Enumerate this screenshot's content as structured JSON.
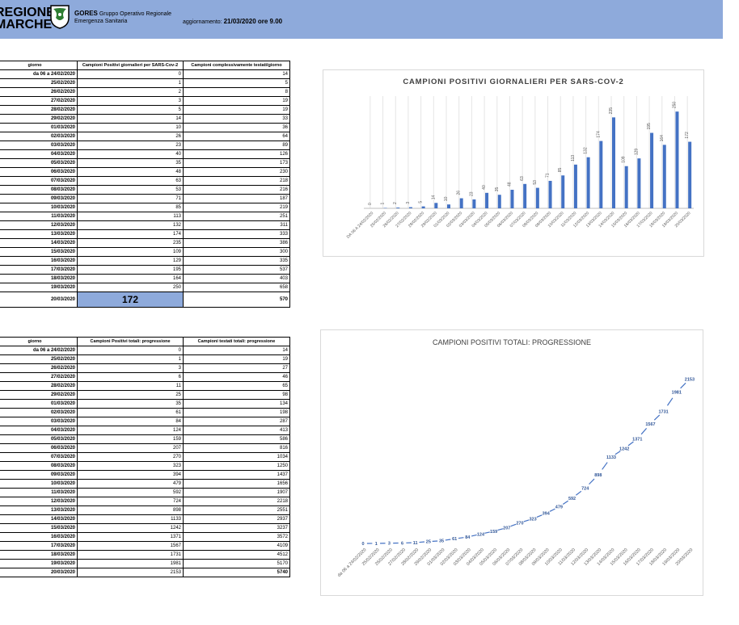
{
  "header": {
    "logo_line1": "REGIONE",
    "logo_line2": "MARCHE",
    "org_name": "GORES",
    "org_desc1": "Gruppo Operativo Regionale",
    "org_desc2": "Emergenza Sanitaria",
    "update_label": "aggiornamento:",
    "update_value": "21/03/2020 ore 9.00"
  },
  "table1": {
    "headers": [
      "giorno",
      "Campioni Positivi giornalieri per SARS-Cov-2",
      "Campioni complessivamente testati/giorno"
    ],
    "rows": [
      [
        "da 06 a 24/02/2020",
        "0",
        "14"
      ],
      [
        "25/02/2020",
        "1",
        "5"
      ],
      [
        "26/02/2020",
        "2",
        "8"
      ],
      [
        "27/02/2020",
        "3",
        "19"
      ],
      [
        "28/02/2020",
        "5",
        "19"
      ],
      [
        "29/02/2020",
        "14",
        "33"
      ],
      [
        "01/03/2020",
        "10",
        "36"
      ],
      [
        "02/03/2020",
        "26",
        "64"
      ],
      [
        "03/03/2020",
        "23",
        "89"
      ],
      [
        "04/03/2020",
        "40",
        "126"
      ],
      [
        "05/03/2020",
        "35",
        "173"
      ],
      [
        "06/03/2020",
        "48",
        "230"
      ],
      [
        "07/03/2020",
        "63",
        "218"
      ],
      [
        "08/03/2020",
        "53",
        "216"
      ],
      [
        "09/03/2020",
        "71",
        "187"
      ],
      [
        "10/03/2020",
        "85",
        "219"
      ],
      [
        "11/03/2020",
        "113",
        "251"
      ],
      [
        "12/03/2020",
        "132",
        "311"
      ],
      [
        "13/03/2020",
        "174",
        "333"
      ],
      [
        "14/03/2020",
        "235",
        "386"
      ],
      [
        "15/03/2020",
        "109",
        "300"
      ],
      [
        "16/03/2020",
        "129",
        "335"
      ],
      [
        "17/03/2020",
        "195",
        "537"
      ],
      [
        "18/03/2020",
        "164",
        "403"
      ],
      [
        "19/03/2020",
        "250",
        "658"
      ]
    ],
    "last_row": [
      "20/03/2020",
      "172",
      "570"
    ]
  },
  "table2": {
    "headers": [
      "giorno",
      "Campioni Positivi totali: progressione",
      "Campioni testati totali: progressione"
    ],
    "rows": [
      [
        "da 06 a 24/02/2020",
        "0",
        "14"
      ],
      [
        "25/02/2020",
        "1",
        "19"
      ],
      [
        "26/02/2020",
        "3",
        "27"
      ],
      [
        "27/02/2020",
        "6",
        "46"
      ],
      [
        "28/02/2020",
        "11",
        "65"
      ],
      [
        "29/02/2020",
        "25",
        "98"
      ],
      [
        "01/03/2020",
        "35",
        "134"
      ],
      [
        "02/03/2020",
        "61",
        "198"
      ],
      [
        "03/03/2020",
        "84",
        "287"
      ],
      [
        "04/03/2020",
        "124",
        "413"
      ],
      [
        "05/03/2020",
        "159",
        "586"
      ],
      [
        "06/03/2020",
        "207",
        "816"
      ],
      [
        "07/03/2020",
        "270",
        "1034"
      ],
      [
        "08/03/2020",
        "323",
        "1250"
      ],
      [
        "09/03/2020",
        "394",
        "1437"
      ],
      [
        "10/03/2020",
        "479",
        "1656"
      ],
      [
        "11/03/2020",
        "592",
        "1907"
      ],
      [
        "12/03/2020",
        "724",
        "2218"
      ],
      [
        "13/03/2020",
        "898",
        "2551"
      ],
      [
        "14/03/2020",
        "1133",
        "2937"
      ],
      [
        "15/03/2020",
        "1242",
        "3237"
      ],
      [
        "16/03/2020",
        "1371",
        "3572"
      ],
      [
        "17/03/2020",
        "1567",
        "4109"
      ],
      [
        "18/03/2020",
        "1731",
        "4512"
      ],
      [
        "19/03/2020",
        "1981",
        "5170"
      ]
    ],
    "last_row": [
      "20/03/2020",
      "2153",
      "5740"
    ]
  },
  "colors": {
    "header_bg": "#8eaadb",
    "series": "#4472c4"
  },
  "chart_data": [
    {
      "type": "bar",
      "title": "CAMPIONI POSITIVI GIORNALIERI PER SARS-COV-2",
      "categories": [
        "DA 06 A 24/02/2020",
        "25/02/2020",
        "26/02/2020",
        "27/02/2020",
        "28/02/2020",
        "29/02/2020",
        "01/03/2020",
        "02/03/2020",
        "03/03/2020",
        "04/03/2020",
        "05/03/2020",
        "06/03/2020",
        "07/03/2020",
        "08/03/2020",
        "09/03/2020",
        "10/03/2020",
        "11/03/2020",
        "12/03/2020",
        "13/03/2020",
        "14/03/2020",
        "15/03/2020",
        "16/03/2020",
        "17/03/2020",
        "18/03/2020",
        "19/03/2020",
        "20/03/2020"
      ],
      "values": [
        0,
        1,
        2,
        3,
        5,
        14,
        10,
        26,
        23,
        40,
        35,
        48,
        63,
        53,
        71,
        85,
        113,
        132,
        174,
        235,
        109,
        129,
        195,
        164,
        250,
        172
      ],
      "data_labels": true,
      "grid": "vertical"
    },
    {
      "type": "line",
      "title": "CAMPIONI POSITIVI TOTALI: PROGRESSIONE",
      "categories": [
        "da 06 a 24/02/2020",
        "25/02/2020",
        "26/02/2020",
        "27/02/2020",
        "28/02/2020",
        "29/02/2020",
        "01/03/2020",
        "02/03/2020",
        "03/03/2020",
        "04/03/2020",
        "05/03/2020",
        "06/03/2020",
        "07/03/2020",
        "08/03/2020",
        "09/03/2020",
        "10/03/2020",
        "11/03/2020",
        "12/03/2020",
        "13/03/2020",
        "14/03/2020",
        "15/03/2020",
        "16/03/2020",
        "17/03/2020",
        "18/03/2020",
        "19/03/2020",
        "20/03/2020"
      ],
      "values": [
        0,
        1,
        3,
        6,
        11,
        25,
        35,
        61,
        84,
        124,
        159,
        207,
        270,
        323,
        394,
        479,
        592,
        724,
        898,
        1133,
        1242,
        1371,
        1567,
        1731,
        1981,
        2153
      ],
      "data_labels": true,
      "line_style": "dashed"
    }
  ]
}
